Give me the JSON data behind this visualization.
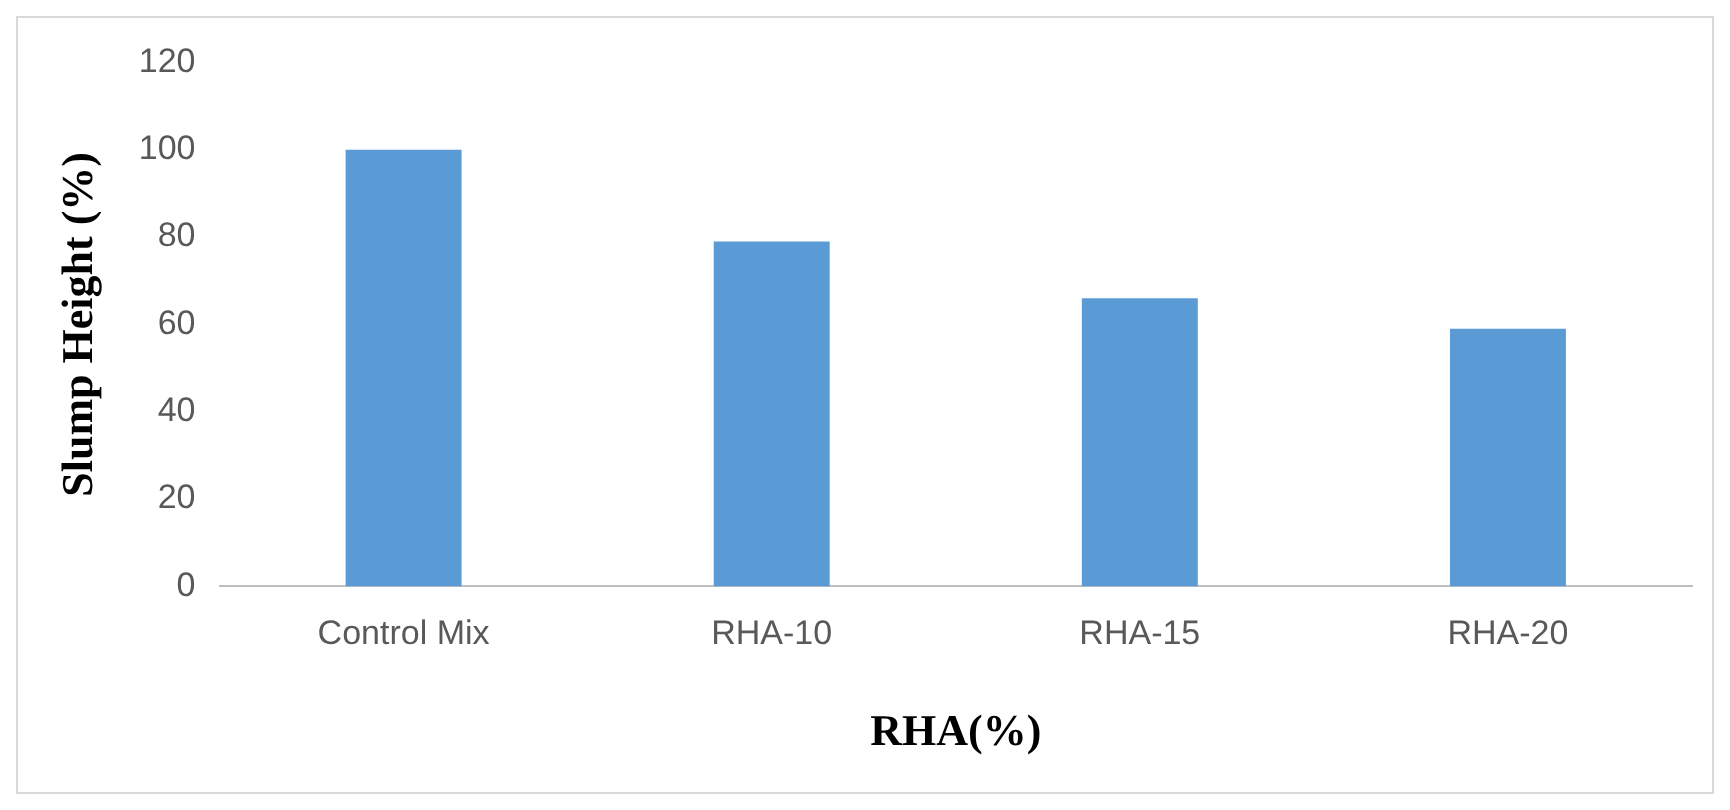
{
  "chart_data": {
    "type": "bar",
    "xlabel": "RHA(%)",
    "ylabel": "Slump Height (%)",
    "categories": [
      "Control Mix",
      "RHA-10",
      "RHA-15",
      "RHA-20"
    ],
    "values": [
      100,
      79,
      66,
      59
    ],
    "color": "#5b9bd5",
    "ylim": [
      0,
      120
    ],
    "yticks": [
      0,
      20,
      40,
      60,
      80,
      100,
      120
    ],
    "grid": false,
    "legend": false
  }
}
